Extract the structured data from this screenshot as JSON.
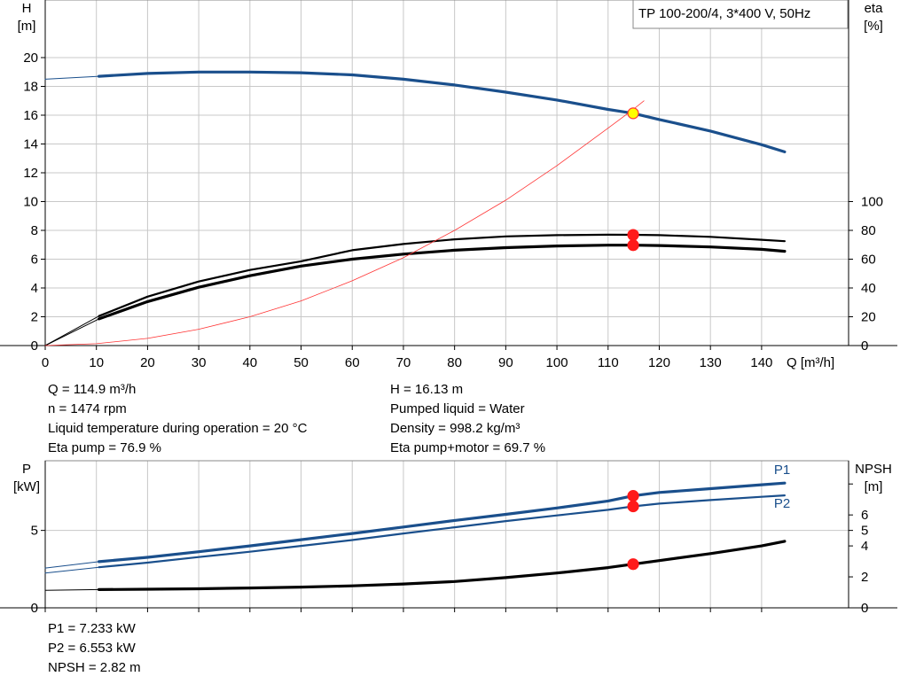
{
  "chart_data": [
    {
      "type": "line",
      "title": "TP 100-200/4, 3*400 V, 50Hz",
      "xlabel": "Q [m³/h]",
      "xlim": [
        0,
        157
      ],
      "x_ticks": [
        0,
        10,
        20,
        30,
        40,
        50,
        60,
        70,
        80,
        90,
        100,
        110,
        120,
        130,
        140
      ],
      "left_axis": {
        "label": [
          "H",
          "[m]"
        ],
        "lim": [
          0,
          24
        ],
        "ticks": [
          0,
          2,
          4,
          6,
          8,
          10,
          12,
          14,
          16,
          18,
          20
        ]
      },
      "right_axis": {
        "label": [
          "eta",
          "[%]"
        ],
        "lim": [
          0,
          240
        ],
        "ticks": [
          0,
          20,
          40,
          60,
          80,
          100
        ]
      },
      "grid": true,
      "series": [
        {
          "axis": "left",
          "color": "#1a4f8c",
          "style": "thick",
          "x": [
            10.5,
            20,
            30,
            40,
            50,
            60,
            70,
            80,
            90,
            100,
            110,
            114.9,
            120,
            130,
            140,
            144.5
          ],
          "y": [
            18.7,
            18.9,
            19.0,
            19.0,
            18.95,
            18.8,
            18.5,
            18.1,
            17.6,
            17.05,
            16.4,
            16.13,
            15.7,
            14.9,
            13.95,
            13.45
          ]
        },
        {
          "axis": "left",
          "color": "#1a4f8c",
          "style": "thin",
          "x": [
            0,
            10.5
          ],
          "y": [
            18.5,
            18.7
          ]
        },
        {
          "axis": "right",
          "color": "#000000",
          "style": "medium",
          "x": [
            10.5,
            20,
            30,
            40,
            50,
            60,
            70,
            80,
            90,
            100,
            110,
            114.9,
            120,
            130,
            140,
            144.5
          ],
          "y": [
            20.5,
            34,
            44.5,
            52.5,
            58.5,
            66.2,
            70.5,
            73.8,
            75.8,
            76.7,
            77.0,
            76.9,
            76.7,
            75.5,
            73.5,
            72.5
          ]
        },
        {
          "axis": "right",
          "color": "#000000",
          "style": "thick",
          "x": [
            10.5,
            20,
            30,
            40,
            50,
            60,
            70,
            80,
            90,
            100,
            110,
            114.9,
            120,
            130,
            140,
            144.5
          ],
          "y": [
            18.5,
            30.5,
            40.5,
            48.5,
            55.2,
            60.0,
            63.5,
            66.2,
            68.0,
            69.2,
            69.7,
            69.7,
            69.5,
            68.5,
            66.8,
            65.5
          ]
        },
        {
          "axis": "right",
          "color": "#000000",
          "style": "thin",
          "x": [
            0,
            10.5
          ],
          "y": [
            0,
            20.5
          ]
        },
        {
          "axis": "right",
          "color": "#000000",
          "style": "thin",
          "x": [
            0,
            10.5
          ],
          "y": [
            0,
            18.5
          ]
        },
        {
          "axis": "left",
          "color": "#ff3333",
          "style": "hair",
          "x": [
            0,
            10,
            20,
            30,
            40,
            50,
            60,
            70,
            80,
            90,
            100,
            110,
            114.9,
            117
          ],
          "y": [
            0,
            0.13,
            0.5,
            1.13,
            2.0,
            3.1,
            4.5,
            6.1,
            8.0,
            10.1,
            12.5,
            15.1,
            16.4,
            17.0
          ]
        }
      ],
      "markers": [
        {
          "axis": "left",
          "x": 114.9,
          "y": 16.13,
          "fill": "#ffff00",
          "stroke": "#ff3333"
        },
        {
          "axis": "right",
          "x": 114.9,
          "y": 76.9,
          "fill": "#ff1a1a",
          "stroke": "#ff1a1a"
        },
        {
          "axis": "right",
          "x": 114.9,
          "y": 69.7,
          "fill": "#ff1a1a",
          "stroke": "#ff1a1a"
        }
      ]
    },
    {
      "type": "line",
      "xlim": [
        0,
        157
      ],
      "x_ticks": [
        0,
        10,
        20,
        30,
        40,
        50,
        60,
        70,
        80,
        90,
        100,
        110,
        120,
        130,
        140
      ],
      "left_axis": {
        "label": [
          "P",
          "[kW]"
        ],
        "lim": [
          0,
          9.5
        ],
        "ticks": [
          0,
          5
        ]
      },
      "right_axis": {
        "label": [
          "NPSH",
          "[m]"
        ],
        "lim": [
          0,
          9.5
        ],
        "ticks": [
          0,
          2,
          4,
          5,
          6,
          8
        ],
        "tick_labels": [
          "0",
          "2",
          "4",
          "5",
          "6",
          ""
        ]
      },
      "grid": true,
      "series": [
        {
          "name": "P1",
          "axis": "left",
          "color": "#1a4f8c",
          "style": "thick",
          "x": [
            10.5,
            20,
            30,
            40,
            50,
            60,
            70,
            80,
            90,
            100,
            110,
            114.9,
            120,
            130,
            140,
            144.5
          ],
          "y": [
            2.98,
            3.26,
            3.62,
            4.0,
            4.4,
            4.8,
            5.22,
            5.64,
            6.04,
            6.45,
            6.9,
            7.233,
            7.45,
            7.7,
            7.95,
            8.06
          ]
        },
        {
          "name": "P2",
          "axis": "left",
          "color": "#1a4f8c",
          "style": "medium",
          "x": [
            10.5,
            20,
            30,
            40,
            50,
            60,
            70,
            80,
            90,
            100,
            110,
            114.9,
            120,
            130,
            140,
            144.5
          ],
          "y": [
            2.62,
            2.92,
            3.28,
            3.62,
            4.0,
            4.38,
            4.8,
            5.2,
            5.6,
            5.97,
            6.33,
            6.553,
            6.73,
            6.96,
            7.17,
            7.26
          ]
        },
        {
          "axis": "right",
          "color": "#000000",
          "style": "thick",
          "x": [
            10.5,
            20,
            30,
            40,
            50,
            60,
            70,
            80,
            90,
            100,
            110,
            114.9,
            120,
            130,
            140,
            144.5
          ],
          "y": [
            1.18,
            1.2,
            1.23,
            1.28,
            1.34,
            1.42,
            1.54,
            1.7,
            1.95,
            2.25,
            2.6,
            2.82,
            3.05,
            3.5,
            4.0,
            4.3
          ]
        },
        {
          "axis": "left",
          "color": "#1a4f8c",
          "style": "thin",
          "x": [
            0,
            10.5
          ],
          "y": [
            2.57,
            2.98
          ]
        },
        {
          "axis": "left",
          "color": "#1a4f8c",
          "style": "thin",
          "x": [
            0,
            10.5
          ],
          "y": [
            2.25,
            2.62
          ]
        },
        {
          "axis": "right",
          "color": "#000000",
          "style": "thin",
          "x": [
            0,
            10.5
          ],
          "y": [
            1.13,
            1.18
          ]
        }
      ],
      "markers": [
        {
          "axis": "left",
          "x": 114.9,
          "y": 7.233,
          "fill": "#ff1a1a",
          "stroke": "#ff1a1a"
        },
        {
          "axis": "left",
          "x": 114.9,
          "y": 6.553,
          "fill": "#ff1a1a",
          "stroke": "#ff1a1a"
        },
        {
          "axis": "right",
          "x": 114.9,
          "y": 2.82,
          "fill": "#ff1a1a",
          "stroke": "#ff1a1a"
        }
      ]
    }
  ],
  "operating_point": {
    "left": [
      "Q = 114.9 m³/h",
      "n = 1474 rpm",
      "Liquid temperature during operation = 20 °C",
      "Eta pump = 76.9 %"
    ],
    "right": [
      "H = 16.13 m",
      "Pumped liquid = Water",
      "Density = 998.2 kg/m³",
      "Eta pump+motor = 69.7 %"
    ]
  },
  "power_point": [
    "P1 = 7.233 kW",
    "P2 = 6.553 kW",
    "NPSH = 2.82 m"
  ]
}
